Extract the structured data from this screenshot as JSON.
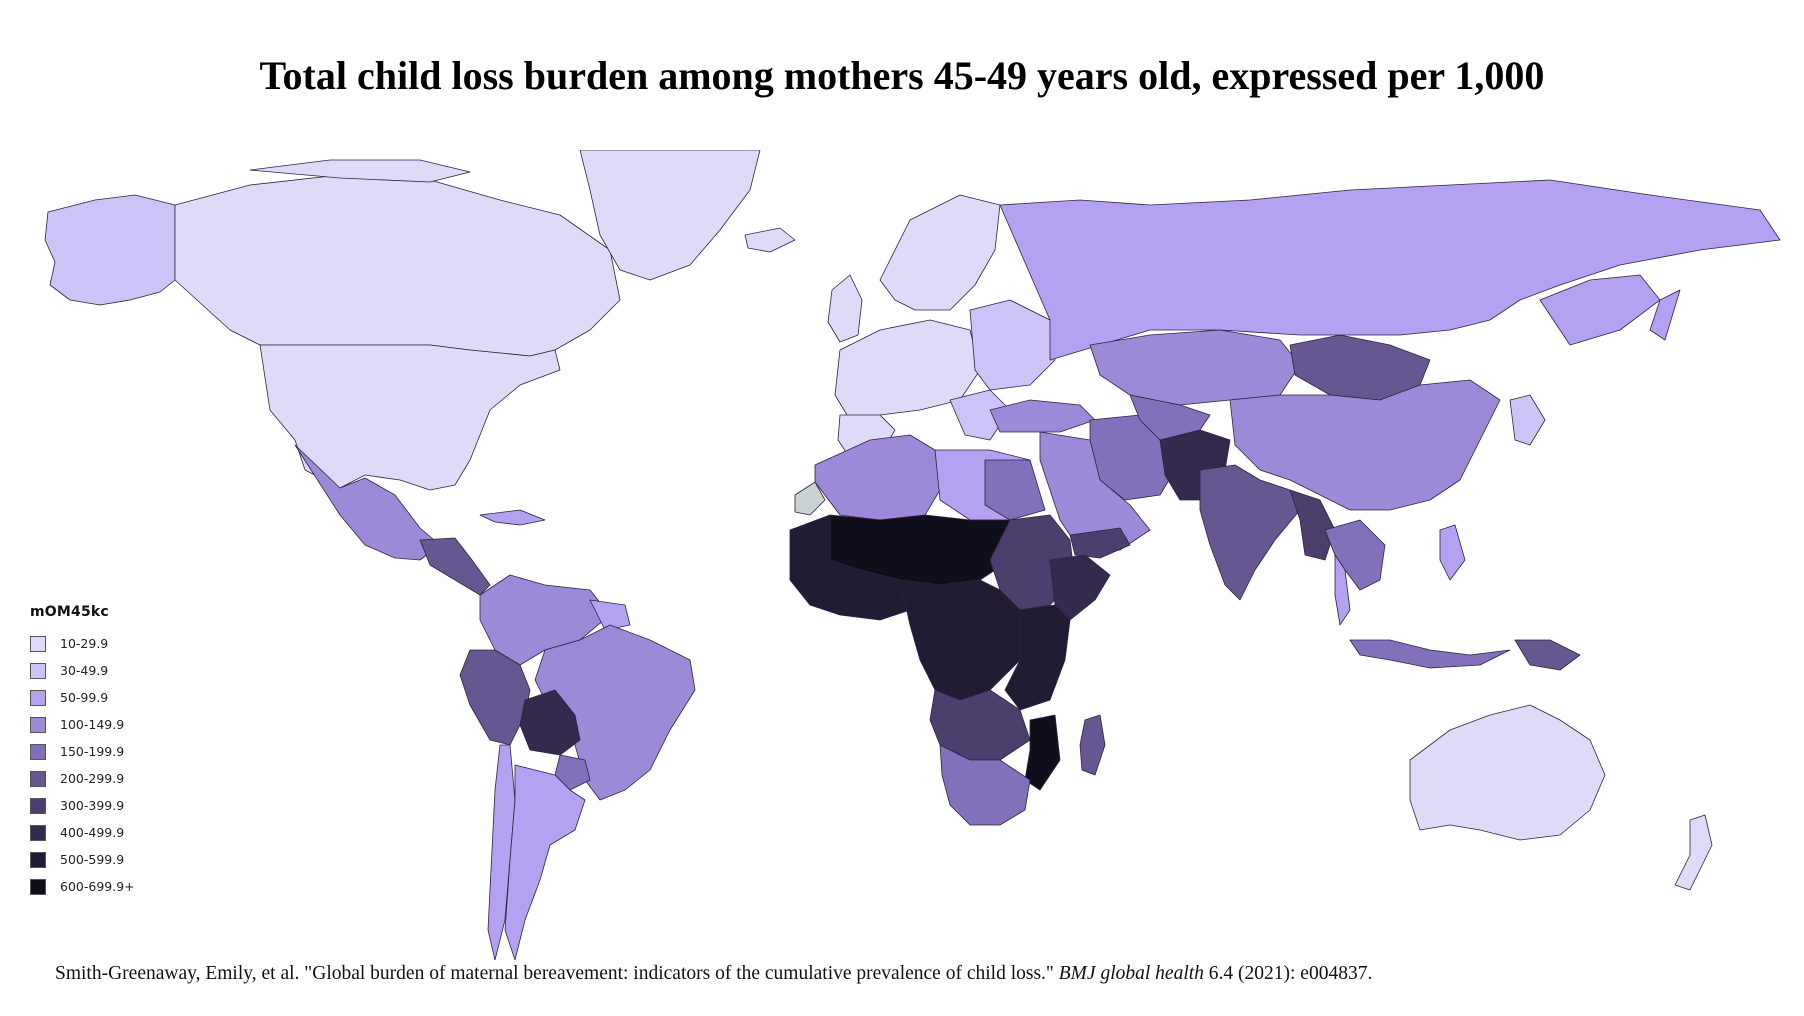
{
  "title": "Total child loss burden among mothers 45-49 years old, expressed per 1,000",
  "legend": {
    "title": "mOM45kc",
    "items": [
      {
        "label": "10-29.9",
        "color": "#e0daf9"
      },
      {
        "label": "30-49.9",
        "color": "#cec3f7"
      },
      {
        "label": "50-99.9",
        "color": "#b4a1f2"
      },
      {
        "label": "100-149.9",
        "color": "#9c8ad8"
      },
      {
        "label": "150-199.9",
        "color": "#8270bb"
      },
      {
        "label": "200-299.9",
        "color": "#675790"
      },
      {
        "label": "300-399.9",
        "color": "#4c3f6e"
      },
      {
        "label": "400-499.9",
        "color": "#332a4d"
      },
      {
        "label": "500-599.9",
        "color": "#211b33"
      },
      {
        "label": "600-699.9+",
        "color": "#110e1c"
      }
    ]
  },
  "citation": {
    "text_before": "Smith-Greenaway, Emily, et al. \"Global burden of maternal bereavement: indicators of the cumulative prevalence of child loss.\" ",
    "journal": "BMJ global health",
    "text_after": " 6.4 (2021): e004837."
  }
}
